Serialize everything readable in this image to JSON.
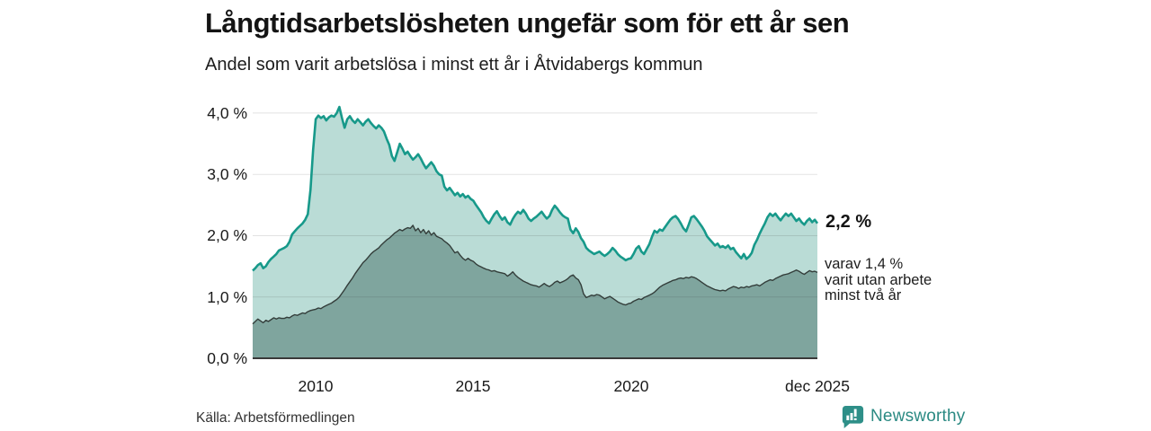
{
  "header": {
    "title": "Långtidsarbetslösheten ungefär som för ett år sen",
    "subtitle": "Andel som varit arbetslösa i minst ett år i Åtvidabergs kommun"
  },
  "chart_data": {
    "type": "area",
    "x_start": "2008-01",
    "x_end": "2025-12",
    "points_per_year": 12,
    "ylim": [
      0,
      4.38
    ],
    "grid_values": [
      1,
      2,
      3,
      4
    ],
    "y_ticks": [
      {
        "value": 0,
        "label": "0,0 %"
      },
      {
        "value": 1,
        "label": "1,0 %"
      },
      {
        "value": 2,
        "label": "2,0 %"
      },
      {
        "value": 3,
        "label": "3,0 %"
      },
      {
        "value": 4,
        "label": "4,0 %"
      }
    ],
    "x_ticks": [
      {
        "month_index": 24,
        "label": "2010"
      },
      {
        "month_index": 84,
        "label": "2015"
      },
      {
        "month_index": 144,
        "label": "2020"
      },
      {
        "month_index": 215,
        "label": "dec 2025"
      }
    ],
    "colors": {
      "total_line": "#17998a",
      "total_fill": "#badcd6",
      "subset_line": "#333d3a",
      "subset_fill": "#7fa59e",
      "grid": "rgba(30,30,30,0.13)",
      "axis": "#3a3a3a"
    },
    "series": [
      {
        "name": "Arbetslösa minst ett år (totalt)",
        "latest_value": 2.2,
        "values": [
          1.43,
          1.47,
          1.52,
          1.55,
          1.47,
          1.5,
          1.57,
          1.62,
          1.66,
          1.7,
          1.76,
          1.78,
          1.8,
          1.83,
          1.9,
          2.02,
          2.07,
          2.12,
          2.16,
          2.2,
          2.26,
          2.35,
          2.75,
          3.4,
          3.9,
          3.96,
          3.92,
          3.95,
          3.88,
          3.93,
          3.96,
          3.94,
          4.0,
          4.1,
          3.92,
          3.76,
          3.9,
          3.95,
          3.88,
          3.84,
          3.9,
          3.85,
          3.8,
          3.86,
          3.9,
          3.84,
          3.79,
          3.75,
          3.8,
          3.76,
          3.7,
          3.58,
          3.48,
          3.3,
          3.22,
          3.36,
          3.5,
          3.42,
          3.33,
          3.37,
          3.3,
          3.24,
          3.28,
          3.33,
          3.26,
          3.17,
          3.1,
          3.15,
          3.2,
          3.14,
          3.05,
          3.0,
          2.98,
          2.8,
          2.74,
          2.78,
          2.72,
          2.66,
          2.7,
          2.64,
          2.68,
          2.62,
          2.65,
          2.6,
          2.57,
          2.5,
          2.44,
          2.38,
          2.3,
          2.24,
          2.2,
          2.28,
          2.35,
          2.4,
          2.32,
          2.26,
          2.3,
          2.22,
          2.18,
          2.27,
          2.34,
          2.39,
          2.36,
          2.42,
          2.36,
          2.28,
          2.24,
          2.28,
          2.31,
          2.35,
          2.39,
          2.33,
          2.28,
          2.32,
          2.42,
          2.49,
          2.44,
          2.38,
          2.33,
          2.3,
          2.28,
          2.1,
          2.04,
          2.12,
          2.06,
          1.96,
          1.9,
          1.8,
          1.76,
          1.73,
          1.7,
          1.72,
          1.74,
          1.7,
          1.67,
          1.7,
          1.74,
          1.8,
          1.76,
          1.7,
          1.66,
          1.63,
          1.6,
          1.62,
          1.63,
          1.7,
          1.79,
          1.83,
          1.74,
          1.7,
          1.78,
          1.86,
          1.98,
          2.08,
          2.05,
          2.1,
          2.08,
          2.14,
          2.2,
          2.26,
          2.3,
          2.32,
          2.27,
          2.2,
          2.12,
          2.07,
          2.18,
          2.3,
          2.32,
          2.27,
          2.21,
          2.15,
          2.08,
          1.99,
          1.94,
          1.89,
          1.84,
          1.87,
          1.81,
          1.83,
          1.8,
          1.84,
          1.78,
          1.8,
          1.73,
          1.68,
          1.63,
          1.7,
          1.62,
          1.66,
          1.72,
          1.85,
          1.93,
          2.03,
          2.12,
          2.2,
          2.3,
          2.36,
          2.32,
          2.36,
          2.3,
          2.25,
          2.31,
          2.36,
          2.32,
          2.36,
          2.3,
          2.24,
          2.28,
          2.22,
          2.18,
          2.24,
          2.28,
          2.22,
          2.26,
          2.2
        ]
      },
      {
        "name": "Varav utan arbete minst två år",
        "latest_value": 1.4,
        "values": [
          0.56,
          0.6,
          0.64,
          0.61,
          0.58,
          0.62,
          0.6,
          0.63,
          0.66,
          0.64,
          0.66,
          0.65,
          0.65,
          0.67,
          0.66,
          0.69,
          0.71,
          0.7,
          0.72,
          0.74,
          0.73,
          0.76,
          0.78,
          0.79,
          0.8,
          0.82,
          0.81,
          0.84,
          0.86,
          0.88,
          0.9,
          0.93,
          0.96,
          1.0,
          1.06,
          1.12,
          1.19,
          1.25,
          1.31,
          1.38,
          1.44,
          1.5,
          1.56,
          1.6,
          1.65,
          1.7,
          1.74,
          1.77,
          1.8,
          1.85,
          1.89,
          1.93,
          1.96,
          2.0,
          2.04,
          2.07,
          2.1,
          2.08,
          2.11,
          2.13,
          2.12,
          2.17,
          2.08,
          2.12,
          2.05,
          2.1,
          2.03,
          2.08,
          2.01,
          2.05,
          1.99,
          1.97,
          1.95,
          1.91,
          1.88,
          1.84,
          1.78,
          1.72,
          1.74,
          1.68,
          1.63,
          1.6,
          1.63,
          1.6,
          1.58,
          1.54,
          1.51,
          1.49,
          1.47,
          1.45,
          1.44,
          1.42,
          1.43,
          1.41,
          1.4,
          1.39,
          1.38,
          1.34,
          1.37,
          1.41,
          1.36,
          1.32,
          1.29,
          1.26,
          1.24,
          1.22,
          1.2,
          1.19,
          1.18,
          1.16,
          1.19,
          1.22,
          1.19,
          1.17,
          1.2,
          1.24,
          1.26,
          1.23,
          1.25,
          1.27,
          1.3,
          1.34,
          1.36,
          1.31,
          1.28,
          1.2,
          1.05,
          0.99,
          1.01,
          1.03,
          1.02,
          1.04,
          1.03,
          1.0,
          0.97,
          0.99,
          1.01,
          0.98,
          0.95,
          0.92,
          0.9,
          0.88,
          0.87,
          0.89,
          0.9,
          0.93,
          0.95,
          0.97,
          0.96,
          0.99,
          1.01,
          1.03,
          1.05,
          1.08,
          1.12,
          1.16,
          1.19,
          1.21,
          1.23,
          1.25,
          1.27,
          1.28,
          1.3,
          1.31,
          1.3,
          1.32,
          1.31,
          1.33,
          1.32,
          1.3,
          1.27,
          1.24,
          1.21,
          1.18,
          1.16,
          1.14,
          1.12,
          1.11,
          1.1,
          1.11,
          1.1,
          1.13,
          1.15,
          1.17,
          1.16,
          1.14,
          1.16,
          1.15,
          1.17,
          1.16,
          1.18,
          1.19,
          1.2,
          1.18,
          1.21,
          1.24,
          1.26,
          1.28,
          1.27,
          1.3,
          1.32,
          1.34,
          1.36,
          1.37,
          1.38,
          1.4,
          1.42,
          1.44,
          1.42,
          1.39,
          1.37,
          1.4,
          1.43,
          1.41,
          1.42,
          1.4
        ]
      }
    ],
    "annotations": {
      "total_label": "2,2 %",
      "subset_label_lines": [
        "varav 1,4 %",
        "varit utan arbete",
        "minst två år"
      ]
    }
  },
  "footer": {
    "source": "Källa: Arbetsförmedlingen",
    "brand": "Newsworthy",
    "brand_icon": "newsworthy-chart-bubble-icon"
  }
}
